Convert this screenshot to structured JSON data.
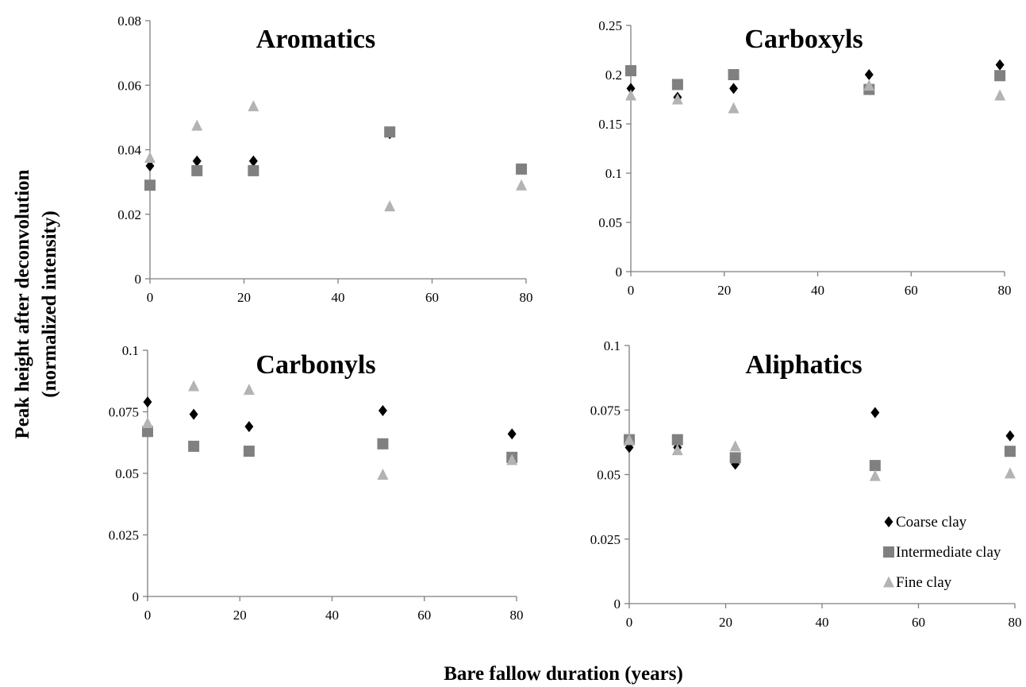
{
  "shared": {
    "xlabel": "Bare fallow duration (years)",
    "ylabel_line1": "Peak height after deconvolution",
    "ylabel_line2": "(normalized intensity)"
  },
  "legend": {
    "placement": "bottom-right panel, lower right",
    "entries": [
      {
        "name": "Coarse clay",
        "marker": "diamond",
        "color": "#000000"
      },
      {
        "name": "Intermediate clay",
        "marker": "square",
        "color": "#808080"
      },
      {
        "name": "Fine clay",
        "marker": "triangle",
        "color": "#b3b3b3"
      }
    ]
  },
  "chart_data": [
    {
      "type": "scatter",
      "title": "Aromatics",
      "xlim": [
        0,
        80
      ],
      "xticks": [
        0,
        20,
        40,
        60,
        80
      ],
      "ylim": [
        0,
        0.08
      ],
      "yticks": [
        0,
        0.02,
        0.04,
        0.06,
        0.08
      ],
      "ytick_labels": [
        "0",
        "0.02",
        "0.04",
        "0.06",
        "0.08"
      ],
      "grid": false,
      "series": [
        {
          "name": "Coarse clay",
          "points": [
            [
              0,
              0.035
            ],
            [
              10,
              0.0365
            ],
            [
              22,
              0.0365
            ],
            [
              51,
              0.045
            ],
            [
              79,
              0.034
            ]
          ]
        },
        {
          "name": "Intermediate clay",
          "points": [
            [
              0,
              0.029
            ],
            [
              10,
              0.0335
            ],
            [
              22,
              0.0335
            ],
            [
              51,
              0.0455
            ],
            [
              79,
              0.034
            ]
          ]
        },
        {
          "name": "Fine clay",
          "points": [
            [
              0,
              0.0375
            ],
            [
              10,
              0.0475
            ],
            [
              22,
              0.0535
            ],
            [
              51,
              0.0225
            ],
            [
              79,
              0.029
            ]
          ]
        }
      ]
    },
    {
      "type": "scatter",
      "title": "Carboxyls",
      "xlim": [
        0,
        80
      ],
      "xticks": [
        0,
        20,
        40,
        60,
        80
      ],
      "ylim": [
        0,
        0.25
      ],
      "yticks": [
        0,
        0.05,
        0.1,
        0.15,
        0.2,
        0.25
      ],
      "ytick_labels": [
        "0",
        "0.05",
        "0.1",
        "0.15",
        "0.2",
        "0.25"
      ],
      "grid": false,
      "series": [
        {
          "name": "Coarse clay",
          "points": [
            [
              0,
              0.186
            ],
            [
              10,
              0.177
            ],
            [
              22,
              0.186
            ],
            [
              51,
              0.2
            ],
            [
              79,
              0.21
            ]
          ]
        },
        {
          "name": "Intermediate clay",
          "points": [
            [
              0,
              0.204
            ],
            [
              10,
              0.19
            ],
            [
              22,
              0.2
            ],
            [
              51,
              0.185
            ],
            [
              79,
              0.199
            ]
          ]
        },
        {
          "name": "Fine clay",
          "points": [
            [
              0,
              0.179
            ],
            [
              10,
              0.175
            ],
            [
              22,
              0.166
            ],
            [
              51,
              0.189
            ],
            [
              79,
              0.179
            ]
          ]
        }
      ]
    },
    {
      "type": "scatter",
      "title": "Carbonyls",
      "xlim": [
        0,
        80
      ],
      "xticks": [
        0,
        20,
        40,
        60,
        80
      ],
      "ylim": [
        0,
        0.1
      ],
      "yticks": [
        0,
        0.025,
        0.05,
        0.075,
        0.1
      ],
      "ytick_labels": [
        "0",
        "0.025",
        "0.05",
        "0.075",
        "0.1"
      ],
      "grid": false,
      "series": [
        {
          "name": "Coarse clay",
          "points": [
            [
              0,
              0.079
            ],
            [
              10,
              0.074
            ],
            [
              22,
              0.069
            ],
            [
              51,
              0.0755
            ],
            [
              79,
              0.066
            ]
          ]
        },
        {
          "name": "Intermediate clay",
          "points": [
            [
              0,
              0.067
            ],
            [
              10,
              0.061
            ],
            [
              22,
              0.059
            ],
            [
              51,
              0.062
            ],
            [
              79,
              0.0565
            ]
          ]
        },
        {
          "name": "Fine clay",
          "points": [
            [
              0,
              0.0705
            ],
            [
              10,
              0.0855
            ],
            [
              22,
              0.084
            ],
            [
              51,
              0.0495
            ],
            [
              79,
              0.0555
            ]
          ]
        }
      ]
    },
    {
      "type": "scatter",
      "title": "Aliphatics",
      "xlim": [
        0,
        80
      ],
      "xticks": [
        0,
        20,
        40,
        60,
        80
      ],
      "ylim": [
        0,
        0.1
      ],
      "yticks": [
        0,
        0.025,
        0.05,
        0.075,
        0.1
      ],
      "ytick_labels": [
        "0",
        "0.025",
        "0.05",
        "0.075",
        "0.1"
      ],
      "grid": false,
      "series": [
        {
          "name": "Coarse clay",
          "points": [
            [
              0,
              0.0605
            ],
            [
              10,
              0.0605
            ],
            [
              22,
              0.054
            ],
            [
              51,
              0.074
            ],
            [
              79,
              0.065
            ]
          ]
        },
        {
          "name": "Intermediate clay",
          "points": [
            [
              0,
              0.0635
            ],
            [
              10,
              0.0635
            ],
            [
              22,
              0.0565
            ],
            [
              51,
              0.0535
            ],
            [
              79,
              0.059
            ]
          ]
        },
        {
          "name": "Fine clay",
          "points": [
            [
              0,
              0.0635
            ],
            [
              10,
              0.0595
            ],
            [
              22,
              0.061
            ],
            [
              51,
              0.0495
            ],
            [
              79,
              0.0505
            ]
          ]
        }
      ]
    }
  ]
}
